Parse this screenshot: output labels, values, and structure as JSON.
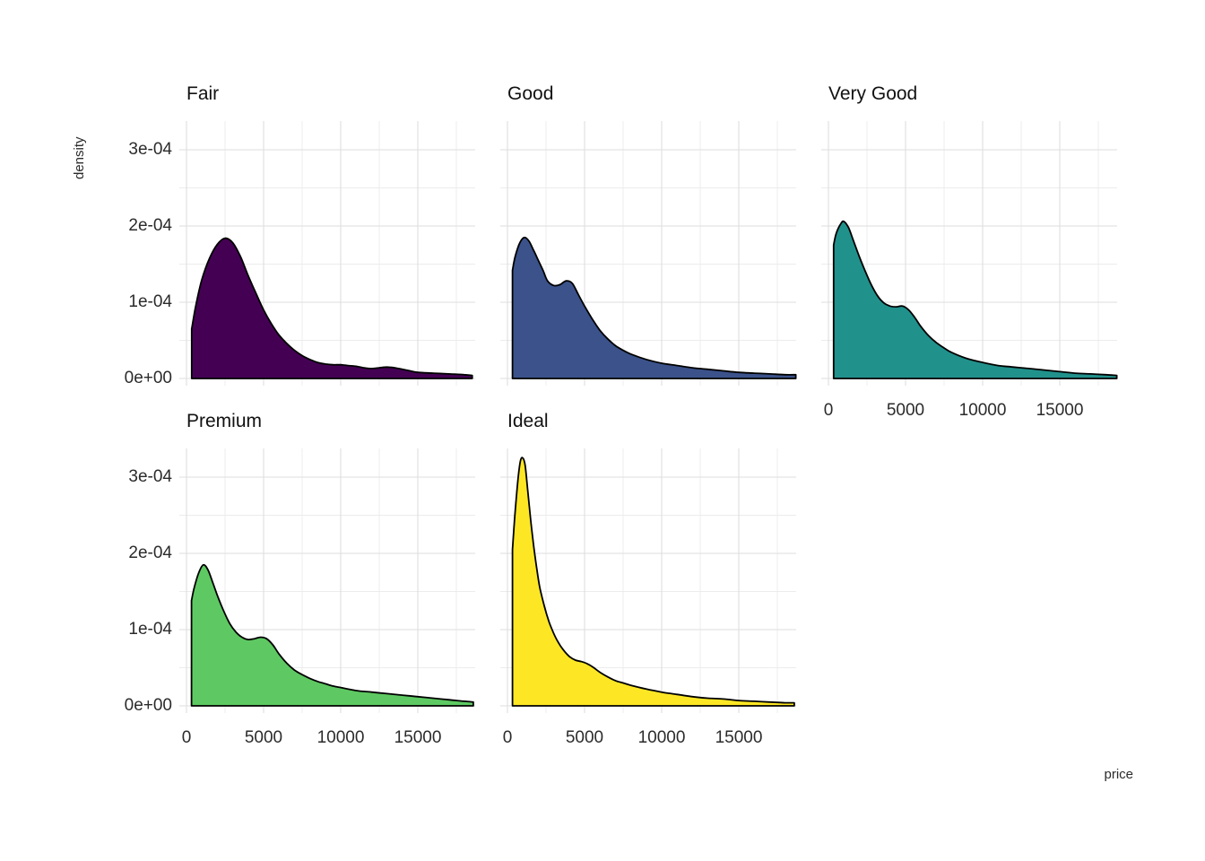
{
  "chart_data": {
    "type": "area",
    "subtype": "faceted-density",
    "title": "",
    "xlabel": "price",
    "ylabel": "density",
    "grid": true,
    "legend": "none",
    "x_ticks": [
      0,
      5000,
      10000,
      15000
    ],
    "x_tick_labels": [
      "0",
      "5000",
      "10000",
      "15000"
    ],
    "x_minor_ticks": [
      2500,
      7500,
      12500,
      17500
    ],
    "xlim": [
      0,
      18720
    ],
    "y_scale": 0.0001,
    "y_ticks": [
      0,
      1,
      2,
      3
    ],
    "y_tick_labels": [
      "0e+00",
      "1e-04",
      "2e-04",
      "3e-04"
    ],
    "y_minor_ticks": [
      0.5,
      1.5,
      2.5
    ],
    "ylim": [
      0,
      3.47
    ],
    "facets": [
      {
        "label": "Fair",
        "color": "#440154",
        "row": 0,
        "col": 0,
        "show_x_axis": false,
        "points": [
          [
            337,
            0.65
          ],
          [
            600,
            0.95
          ],
          [
            1000,
            1.3
          ],
          [
            1500,
            1.58
          ],
          [
            2000,
            1.76
          ],
          [
            2500,
            1.84
          ],
          [
            3000,
            1.78
          ],
          [
            3500,
            1.6
          ],
          [
            4000,
            1.35
          ],
          [
            4500,
            1.12
          ],
          [
            5000,
            0.9
          ],
          [
            5500,
            0.72
          ],
          [
            6000,
            0.57
          ],
          [
            6500,
            0.46
          ],
          [
            7000,
            0.37
          ],
          [
            7500,
            0.3
          ],
          [
            8000,
            0.25
          ],
          [
            8500,
            0.21
          ],
          [
            9000,
            0.19
          ],
          [
            9500,
            0.18
          ],
          [
            10000,
            0.18
          ],
          [
            10500,
            0.17
          ],
          [
            11000,
            0.16
          ],
          [
            11500,
            0.14
          ],
          [
            12000,
            0.13
          ],
          [
            12500,
            0.14
          ],
          [
            13000,
            0.15
          ],
          [
            13500,
            0.14
          ],
          [
            14000,
            0.12
          ],
          [
            14500,
            0.1
          ],
          [
            15000,
            0.08
          ],
          [
            16000,
            0.07
          ],
          [
            17000,
            0.06
          ],
          [
            18000,
            0.05
          ],
          [
            18530,
            0.04
          ]
        ]
      },
      {
        "label": "Good",
        "color": "#3B528B",
        "row": 0,
        "col": 1,
        "show_x_axis": false,
        "points": [
          [
            327,
            1.42
          ],
          [
            500,
            1.6
          ],
          [
            800,
            1.78
          ],
          [
            1100,
            1.85
          ],
          [
            1400,
            1.8
          ],
          [
            1700,
            1.68
          ],
          [
            2000,
            1.55
          ],
          [
            2300,
            1.42
          ],
          [
            2600,
            1.28
          ],
          [
            3000,
            1.22
          ],
          [
            3400,
            1.23
          ],
          [
            3800,
            1.28
          ],
          [
            4200,
            1.25
          ],
          [
            4600,
            1.1
          ],
          [
            5000,
            0.95
          ],
          [
            5500,
            0.78
          ],
          [
            6000,
            0.63
          ],
          [
            6500,
            0.52
          ],
          [
            7000,
            0.43
          ],
          [
            7500,
            0.37
          ],
          [
            8000,
            0.32
          ],
          [
            9000,
            0.25
          ],
          [
            10000,
            0.2
          ],
          [
            11000,
            0.17
          ],
          [
            12000,
            0.14
          ],
          [
            13000,
            0.12
          ],
          [
            14000,
            0.1
          ],
          [
            15000,
            0.08
          ],
          [
            16000,
            0.07
          ],
          [
            17000,
            0.06
          ],
          [
            18000,
            0.05
          ],
          [
            18700,
            0.05
          ]
        ]
      },
      {
        "label": "Very Good",
        "color": "#21918C",
        "row": 0,
        "col": 2,
        "show_x_axis": true,
        "points": [
          [
            336,
            1.75
          ],
          [
            500,
            1.9
          ],
          [
            800,
            2.03
          ],
          [
            1000,
            2.06
          ],
          [
            1300,
            1.98
          ],
          [
            1600,
            1.82
          ],
          [
            2000,
            1.6
          ],
          [
            2400,
            1.4
          ],
          [
            2800,
            1.22
          ],
          [
            3200,
            1.08
          ],
          [
            3600,
            0.99
          ],
          [
            4000,
            0.95
          ],
          [
            4400,
            0.94
          ],
          [
            4800,
            0.95
          ],
          [
            5200,
            0.9
          ],
          [
            5600,
            0.8
          ],
          [
            6000,
            0.68
          ],
          [
            6500,
            0.56
          ],
          [
            7000,
            0.47
          ],
          [
            7500,
            0.4
          ],
          [
            8000,
            0.34
          ],
          [
            9000,
            0.26
          ],
          [
            10000,
            0.21
          ],
          [
            11000,
            0.17
          ],
          [
            12000,
            0.15
          ],
          [
            13000,
            0.13
          ],
          [
            14000,
            0.11
          ],
          [
            15000,
            0.09
          ],
          [
            16000,
            0.07
          ],
          [
            17000,
            0.06
          ],
          [
            18000,
            0.05
          ],
          [
            18700,
            0.04
          ]
        ]
      },
      {
        "label": "Premium",
        "color": "#5EC962",
        "row": 1,
        "col": 0,
        "show_x_axis": true,
        "points": [
          [
            326,
            1.38
          ],
          [
            500,
            1.55
          ],
          [
            800,
            1.75
          ],
          [
            1100,
            1.85
          ],
          [
            1400,
            1.78
          ],
          [
            1700,
            1.62
          ],
          [
            2000,
            1.45
          ],
          [
            2400,
            1.25
          ],
          [
            2800,
            1.08
          ],
          [
            3200,
            0.97
          ],
          [
            3600,
            0.9
          ],
          [
            4000,
            0.87
          ],
          [
            4400,
            0.88
          ],
          [
            4800,
            0.9
          ],
          [
            5200,
            0.88
          ],
          [
            5600,
            0.8
          ],
          [
            6000,
            0.68
          ],
          [
            6500,
            0.56
          ],
          [
            7000,
            0.47
          ],
          [
            7500,
            0.41
          ],
          [
            8000,
            0.36
          ],
          [
            8500,
            0.32
          ],
          [
            9000,
            0.29
          ],
          [
            9500,
            0.26
          ],
          [
            10000,
            0.24
          ],
          [
            11000,
            0.2
          ],
          [
            12000,
            0.18
          ],
          [
            13000,
            0.16
          ],
          [
            14000,
            0.14
          ],
          [
            15000,
            0.12
          ],
          [
            16000,
            0.1
          ],
          [
            17000,
            0.08
          ],
          [
            18000,
            0.06
          ],
          [
            18600,
            0.05
          ]
        ]
      },
      {
        "label": "Ideal",
        "color": "#FDE725",
        "row": 1,
        "col": 1,
        "show_x_axis": true,
        "points": [
          [
            326,
            2.05
          ],
          [
            500,
            2.55
          ],
          [
            700,
            3.0
          ],
          [
            850,
            3.22
          ],
          [
            1000,
            3.25
          ],
          [
            1150,
            3.15
          ],
          [
            1300,
            2.85
          ],
          [
            1500,
            2.45
          ],
          [
            1700,
            2.1
          ],
          [
            1900,
            1.8
          ],
          [
            2100,
            1.55
          ],
          [
            2400,
            1.3
          ],
          [
            2700,
            1.1
          ],
          [
            3000,
            0.95
          ],
          [
            3300,
            0.83
          ],
          [
            3600,
            0.74
          ],
          [
            4000,
            0.65
          ],
          [
            4400,
            0.6
          ],
          [
            4800,
            0.58
          ],
          [
            5200,
            0.55
          ],
          [
            5600,
            0.5
          ],
          [
            6000,
            0.44
          ],
          [
            6500,
            0.38
          ],
          [
            7000,
            0.33
          ],
          [
            7500,
            0.3
          ],
          [
            8000,
            0.27
          ],
          [
            9000,
            0.22
          ],
          [
            10000,
            0.18
          ],
          [
            11000,
            0.15
          ],
          [
            12000,
            0.12
          ],
          [
            13000,
            0.1
          ],
          [
            14000,
            0.09
          ],
          [
            15000,
            0.07
          ],
          [
            16000,
            0.06
          ],
          [
            17000,
            0.05
          ],
          [
            18000,
            0.04
          ],
          [
            18600,
            0.04
          ]
        ]
      }
    ]
  }
}
